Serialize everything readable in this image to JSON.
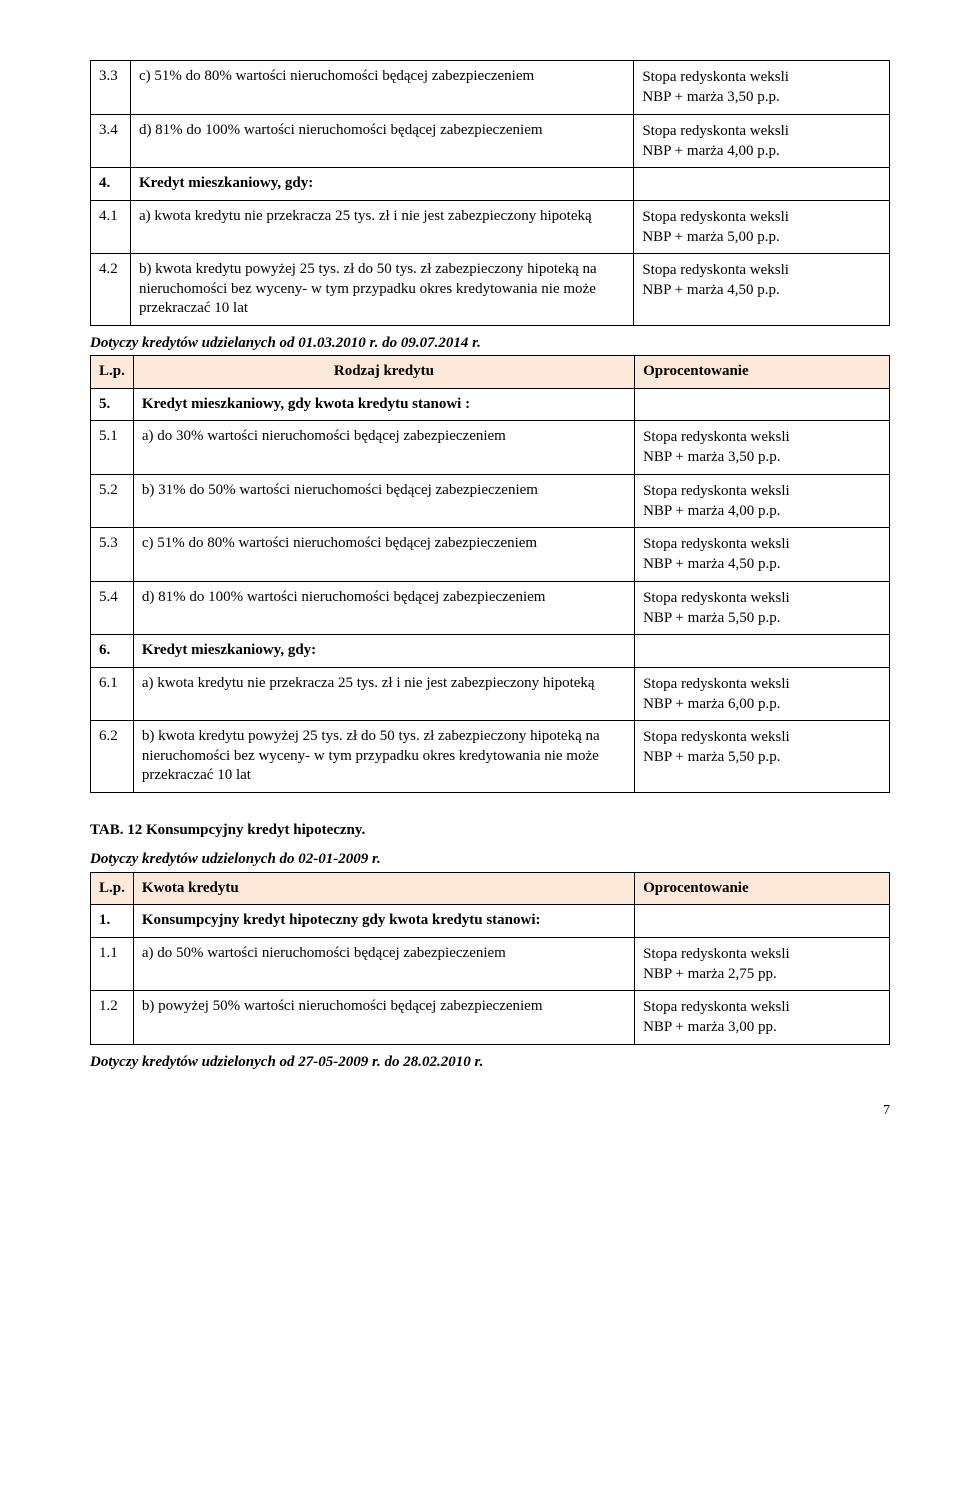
{
  "table1": {
    "rows": [
      {
        "lp": "3.3",
        "desc": "c) 51% do 80% wartości nieruchomości będącej zabezpieczeniem",
        "rate1": "Stopa redyskonta weksli",
        "rate2": "NBP + marża 3,50 p.p."
      },
      {
        "lp": "3.4",
        "desc": "d) 81% do 100% wartości nieruchomości będącej zabezpieczeniem",
        "rate1": "Stopa redyskonta weksli",
        "rate2": "NBP + marża 4,00 p.p."
      },
      {
        "lp": "4.",
        "desc": "Kredyt mieszkaniowy, gdy:",
        "bold": true
      },
      {
        "lp": "4.1",
        "desc": "a) kwota kredytu nie przekracza 25 tys. zł i nie jest zabezpieczony hipoteką",
        "rate1": "Stopa redyskonta weksli",
        "rate2": "NBP + marża 5,00 p.p."
      },
      {
        "lp": "4.2",
        "desc": "b) kwota kredytu powyżej 25 tys. zł do 50 tys. zł zabezpieczony hipoteką na nieruchomości bez wyceny- w tym przypadku okres kredytowania nie może przekraczać 10 lat",
        "rate1": "Stopa redyskonta weksli",
        "rate2": "NBP + marża 4,50 p.p."
      }
    ]
  },
  "caption1": "Dotyczy kredytów udzielanych od 01.03.2010 r. do 09.07.2014 r.",
  "table2": {
    "header": {
      "lp": "L.p.",
      "desc": "Rodzaj kredytu",
      "rate": "Oprocentowanie"
    },
    "rows": [
      {
        "lp": "5.",
        "desc": "Kredyt mieszkaniowy, gdy kwota kredytu stanowi :",
        "bold": true
      },
      {
        "lp": "5.1",
        "desc": "a) do 30%  wartości nieruchomości będącej zabezpieczeniem",
        "rate1": "Stopa redyskonta weksli",
        "rate2": "NBP + marża  3,50 p.p."
      },
      {
        "lp": "5.2",
        "desc": "b) 31% do 50% wartości nieruchomości będącej zabezpieczeniem",
        "rate1": "Stopa redyskonta weksli",
        "rate2": "NBP + marża 4,00 p.p."
      },
      {
        "lp": "5.3",
        "desc": "c) 51% do 80% wartości nieruchomości będącej zabezpieczeniem",
        "rate1": "Stopa redyskonta weksli",
        "rate2": "NBP + marża 4,50 p.p."
      },
      {
        "lp": "5.4",
        "desc": "d) 81% do 100% wartości nieruchomości będącej zabezpieczeniem",
        "rate1": "Stopa redyskonta weksli",
        "rate2": "NBP + marża 5,50 p.p."
      },
      {
        "lp": "6.",
        "desc": "Kredyt mieszkaniowy, gdy:",
        "bold": true
      },
      {
        "lp": "6.1",
        "desc": "a) kwota kredytu nie przekracza 25 tys. zł i nie jest zabezpieczony hipoteką",
        "rate1": "Stopa redyskonta weksli",
        "rate2": "NBP + marża 6,00 p.p."
      },
      {
        "lp": "6.2",
        "desc": "b) kwota kredytu powyżej 25 tys. zł do 50 tys. zł zabezpieczony hipoteką na nieruchomości bez wyceny- w tym przypadku okres kredytowania nie może przekraczać 10 lat",
        "rate1": "Stopa redyskonta weksli",
        "rate2": "NBP + marża 5,50 p.p."
      }
    ]
  },
  "heading12": "TAB. 12 Konsumpcyjny kredyt hipoteczny.",
  "caption2": "Dotyczy kredytów udzielonych do 02-01-2009 r.",
  "table3": {
    "header": {
      "lp": "L.p.",
      "desc": "Kwota kredytu",
      "rate": "Oprocentowanie"
    },
    "rows": [
      {
        "lp": "1.",
        "desc": "Konsumpcyjny kredyt hipoteczny gdy kwota kredytu stanowi:",
        "bold": true
      },
      {
        "lp": "1.1",
        "desc": "a) do 50%  wartości nieruchomości będącej zabezpieczeniem",
        "rate1": "Stopa redyskonta weksli",
        "rate2": "NBP + marża 2,75 pp."
      },
      {
        "lp": "1.2",
        "desc": "b) powyżej 50% wartości nieruchomości będącej zabezpieczeniem",
        "rate1": "Stopa redyskonta weksli",
        "rate2": "NBP + marża 3,00 pp."
      }
    ]
  },
  "caption3": "Dotyczy kredytów udzielonych od 27-05-2009 r. do 28.02.2010 r.",
  "pageNum": "7"
}
